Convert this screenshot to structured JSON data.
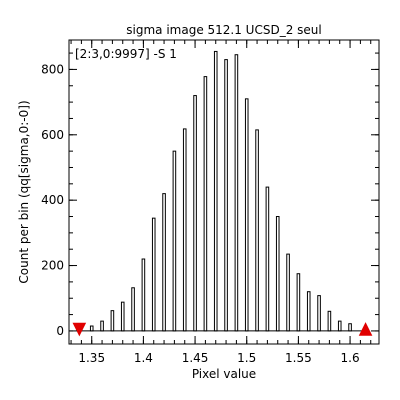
{
  "chart_data": {
    "type": "bar",
    "title": "sigma image 512.1 UCSD_2 seul",
    "annotation": "[2:3,0:9997] -S 1",
    "xlabel": "Pixel value",
    "ylabel": "Count per bin (qq[sigma,0:-0])",
    "xlim": [
      1.328,
      1.628
    ],
    "ylim": [
      -40,
      890
    ],
    "x_ticks": [
      {
        "value": 1.35,
        "label": "1.35"
      },
      {
        "value": 1.4,
        "label": "1.4"
      },
      {
        "value": 1.45,
        "label": "1.45"
      },
      {
        "value": 1.5,
        "label": "1.5"
      },
      {
        "value": 1.55,
        "label": "1.55"
      },
      {
        "value": 1.6,
        "label": "1.6"
      }
    ],
    "y_ticks": [
      {
        "value": 0,
        "label": "0"
      },
      {
        "value": 200,
        "label": "200"
      },
      {
        "value": 400,
        "label": "400"
      },
      {
        "value": 600,
        "label": "600"
      },
      {
        "value": 800,
        "label": "800"
      }
    ],
    "bin_width": 0.005,
    "bar_width_fraction": 0.5,
    "x": [
      1.34,
      1.345,
      1.35,
      1.355,
      1.36,
      1.365,
      1.37,
      1.375,
      1.38,
      1.385,
      1.39,
      1.395,
      1.4,
      1.405,
      1.41,
      1.415,
      1.42,
      1.425,
      1.43,
      1.435,
      1.44,
      1.445,
      1.45,
      1.455,
      1.46,
      1.465,
      1.47,
      1.475,
      1.48,
      1.485,
      1.49,
      1.495,
      1.5,
      1.505,
      1.51,
      1.515,
      1.52,
      1.525,
      1.53,
      1.535,
      1.54,
      1.545,
      1.55,
      1.555,
      1.56,
      1.565,
      1.57,
      1.575,
      1.58,
      1.585,
      1.59,
      1.595,
      1.6,
      1.605,
      1.61
    ],
    "values": [
      0,
      0,
      15,
      0,
      30,
      0,
      62,
      0,
      88,
      0,
      132,
      0,
      220,
      0,
      345,
      0,
      420,
      0,
      550,
      0,
      618,
      0,
      720,
      0,
      778,
      0,
      855,
      0,
      830,
      0,
      845,
      0,
      710,
      0,
      615,
      0,
      440,
      0,
      350,
      0,
      235,
      0,
      175,
      0,
      120,
      0,
      108,
      0,
      60,
      0,
      30,
      0,
      22,
      0,
      0
    ],
    "markers": [
      {
        "shape": "triangle-down",
        "x": 1.338,
        "y": 5,
        "color": "#e00000"
      },
      {
        "shape": "triangle-up",
        "x": 1.615,
        "y": 5,
        "color": "#e00000"
      }
    ],
    "grid": false,
    "colors": {
      "axes": "#000000",
      "marker": "#e00000",
      "background": "#ffffff"
    }
  }
}
